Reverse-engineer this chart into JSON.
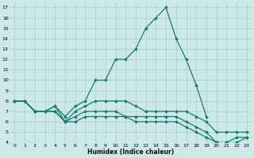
{
  "xlabel": "Humidex (Indice chaleur)",
  "bg_color": "#cce8e8",
  "line_color": "#1a7a6e",
  "grid_color": "#aacece",
  "xlim": [
    -0.5,
    23.5
  ],
  "ylim": [
    4,
    17.5
  ],
  "xticks": [
    0,
    1,
    2,
    3,
    4,
    5,
    6,
    7,
    8,
    9,
    10,
    11,
    12,
    13,
    14,
    15,
    16,
    17,
    18,
    19,
    20,
    21,
    22,
    23
  ],
  "yticks": [
    4,
    5,
    6,
    7,
    8,
    9,
    10,
    11,
    12,
    13,
    14,
    15,
    16,
    17
  ],
  "series": [
    {
      "x": [
        0,
        1,
        2,
        3,
        4,
        5,
        6,
        7,
        8,
        9,
        10,
        11,
        12,
        13,
        14,
        15,
        16,
        17,
        18,
        19,
        20,
        21,
        22,
        23
      ],
      "y": [
        8,
        8,
        7,
        7,
        7.5,
        6.5,
        7.5,
        8,
        10,
        10,
        12,
        12,
        13,
        15,
        16,
        17,
        14,
        12,
        9.5,
        6.5,
        null,
        null,
        null,
        null
      ]
    },
    {
      "x": [
        0,
        1,
        2,
        3,
        4,
        5,
        6,
        7,
        8,
        9,
        10,
        11,
        12,
        13,
        14,
        15,
        16,
        17,
        18,
        19,
        20,
        21,
        22,
        23
      ],
      "y": [
        8,
        8,
        7,
        7,
        7.5,
        6,
        7,
        7.5,
        8,
        8,
        8,
        8,
        7.5,
        7,
        7,
        7,
        7,
        7,
        6.5,
        6,
        5,
        5,
        5,
        5
      ]
    },
    {
      "x": [
        0,
        1,
        2,
        3,
        4,
        5,
        6,
        7,
        8,
        9,
        10,
        11,
        12,
        13,
        14,
        15,
        16,
        17,
        18,
        19,
        20,
        21,
        22,
        23
      ],
      "y": [
        8,
        8,
        7,
        7,
        7,
        6,
        6.5,
        7,
        7,
        7,
        7,
        6.5,
        6.5,
        6.5,
        6.5,
        6.5,
        6.5,
        6,
        5.5,
        5,
        4,
        4,
        4.5,
        4.5
      ]
    },
    {
      "x": [
        0,
        1,
        2,
        3,
        4,
        5,
        6,
        7,
        8,
        9,
        10,
        11,
        12,
        13,
        14,
        15,
        16,
        17,
        18,
        19,
        20,
        21,
        22,
        23
      ],
      "y": [
        8,
        8,
        7,
        7,
        7,
        6,
        6,
        6.5,
        6.5,
        6.5,
        6.5,
        6.5,
        6,
        6,
        6,
        6,
        6,
        5.5,
        5,
        4.5,
        4,
        4,
        4,
        4.5
      ]
    }
  ]
}
